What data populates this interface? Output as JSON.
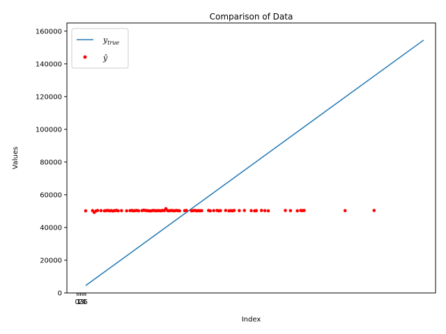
{
  "chart_data": {
    "type": "scatter",
    "title": "Comparison of Data",
    "xlabel": "Index",
    "ylabel": "Values",
    "ylim": [
      0,
      165000
    ],
    "xlim": [
      -6,
      210
    ],
    "grid": false,
    "legend_placement": "top-left",
    "y_ticks": [
      0,
      20000,
      40000,
      60000,
      80000,
      100000,
      120000,
      140000,
      160000
    ],
    "y_tick_labels": [
      "0",
      "20000",
      "40000",
      "60000",
      "80000",
      "100000",
      "120000",
      "140000",
      "160000"
    ],
    "x_ticks": [
      0,
      1,
      2,
      3,
      4,
      5
    ],
    "x_tick_labels": [
      "0",
      "1",
      "2",
      "3",
      "4",
      "5"
    ],
    "series": [
      {
        "name": "y_true",
        "legend_label": "y",
        "legend_sub": "true",
        "kind": "line",
        "color": "#1f77b4",
        "x": [
          5,
          203
        ],
        "y": [
          4500,
          154500
        ]
      },
      {
        "name": "y_hat",
        "legend_label": "ŷ",
        "kind": "scatter",
        "color": "#ff0000",
        "x": [
          5,
          9,
          10,
          11,
          12,
          14,
          16,
          17,
          18,
          19,
          20,
          21,
          22,
          23,
          24,
          26,
          29,
          31,
          32,
          33,
          34,
          35,
          36,
          38,
          39,
          40,
          41,
          42,
          43,
          44,
          45,
          46,
          47,
          48,
          49,
          50,
          51,
          52,
          53,
          54,
          55,
          56,
          57,
          58,
          59,
          60,
          63,
          64,
          67,
          68,
          69,
          70,
          71,
          72,
          73,
          77,
          78,
          80,
          82,
          83,
          84,
          87,
          89,
          90,
          91,
          92,
          95,
          98,
          102,
          104,
          105,
          108,
          110,
          112,
          122,
          125,
          129,
          131,
          132,
          133,
          157,
          174
        ],
        "y": [
          50200,
          50300,
          49200,
          50100,
          50400,
          50300,
          50200,
          50300,
          50400,
          50200,
          50300,
          50100,
          50300,
          50400,
          50200,
          50300,
          50200,
          50300,
          50400,
          50200,
          50300,
          50400,
          50200,
          50300,
          50600,
          50400,
          50300,
          50200,
          50100,
          50300,
          50400,
          50200,
          50300,
          50300,
          50200,
          50400,
          50300,
          51500,
          50300,
          50200,
          50400,
          50300,
          50200,
          50400,
          50300,
          50200,
          50300,
          50400,
          50200,
          50300,
          50400,
          50200,
          50300,
          50200,
          50300,
          50400,
          50200,
          50300,
          50400,
          50200,
          50300,
          50400,
          50200,
          50300,
          50200,
          50400,
          50300,
          50400,
          50300,
          50200,
          50300,
          50400,
          50300,
          50200,
          50400,
          50300,
          50200,
          50400,
          50300,
          50400,
          50300,
          50400
        ]
      }
    ]
  }
}
